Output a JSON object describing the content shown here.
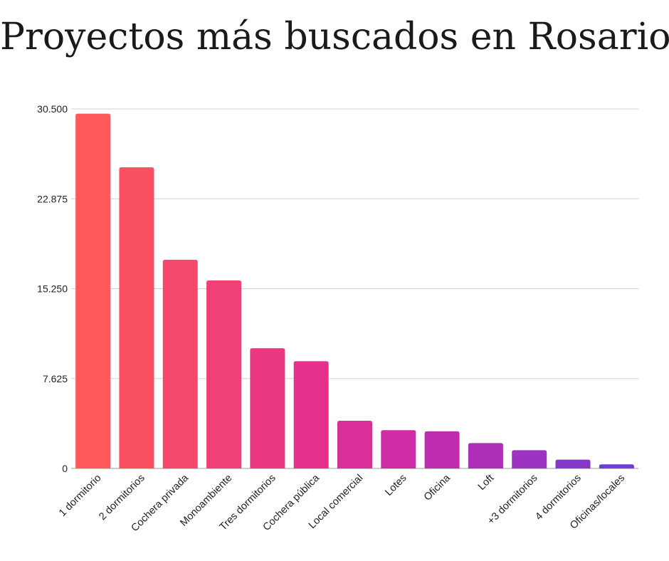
{
  "chart_data": {
    "type": "bar",
    "title": "Proyectos más buscados en Rosario",
    "xlabel": "",
    "ylabel": "",
    "ylim": [
      0,
      30500
    ],
    "yticks": [
      0,
      7625,
      15250,
      22875,
      30500
    ],
    "ytick_labels": [
      "0",
      "7.625",
      "15.250",
      "22.875",
      "30.500"
    ],
    "grid": true,
    "legend": "none",
    "categories": [
      "1 dormitorio",
      "2 dormitorios",
      "Cochera privada",
      "Monoambiente",
      "Tres dormitorios",
      "Cochera pública",
      "Local comercial",
      "Lotes",
      "Oficina",
      "Loft",
      "+3 dormitorios",
      "4 dormitorios",
      "Oficinas/locales"
    ],
    "values": [
      30100,
      25550,
      17700,
      15950,
      10200,
      9100,
      4050,
      3250,
      3150,
      2150,
      1550,
      750,
      350
    ],
    "colors": [
      "#ff5a5a",
      "#fb5062",
      "#f6476c",
      "#f14076",
      "#eb3880",
      "#e3318c",
      "#d92f98",
      "#cd2ca4",
      "#bf2cae",
      "#ae30b8",
      "#9c34c1",
      "#8638c9",
      "#6d3ecf"
    ]
  }
}
